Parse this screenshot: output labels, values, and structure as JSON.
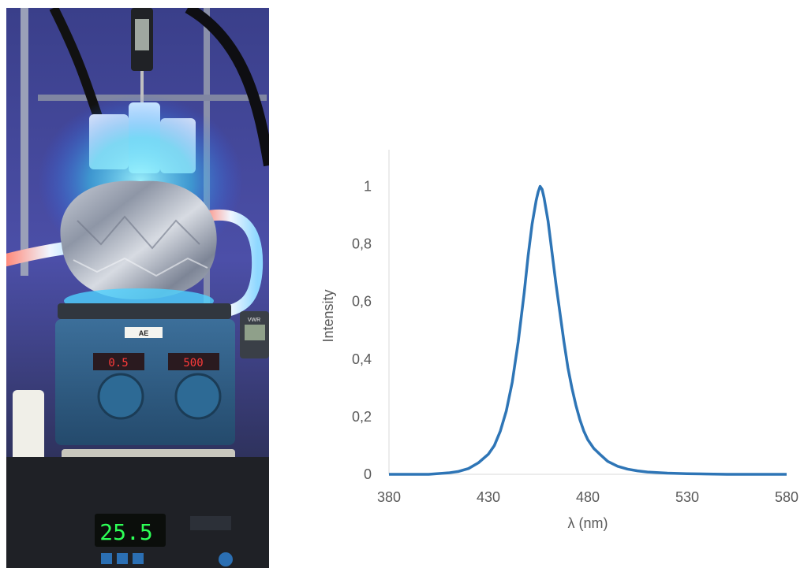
{
  "photo": {
    "hotplate_label": "AE",
    "meter_brand": "VWR",
    "temp_display": "25.5",
    "left_display": "0.5",
    "right_display": "500"
  },
  "chart_data": {
    "type": "line",
    "title": "",
    "xlabel": "λ (nm)",
    "ylabel": "Intensity",
    "xlim": [
      380,
      580
    ],
    "ylim": [
      0,
      1.1
    ],
    "x_ticks": [
      380,
      430,
      480,
      530,
      580
    ],
    "x_tick_labels": [
      "380",
      "430",
      "480",
      "530",
      "580"
    ],
    "y_ticks": [
      0,
      0.2,
      0.4,
      0.6,
      0.8,
      1
    ],
    "y_tick_labels": [
      "0",
      "0,2",
      "0,4",
      "0,6",
      "0,8",
      "1"
    ],
    "grid": false,
    "legend": "none",
    "series": [
      {
        "color": "#2e75b6",
        "x": [
          380,
          390,
          400,
          410,
          415,
          420,
          425,
          430,
          433,
          436,
          439,
          442,
          445,
          448,
          450,
          452,
          454,
          455,
          456,
          457,
          458,
          460,
          462,
          464,
          466,
          468,
          470,
          472,
          474,
          476,
          478,
          480,
          483,
          486,
          490,
          495,
          500,
          505,
          510,
          520,
          530,
          540,
          550,
          560,
          570,
          580
        ],
        "y": [
          0.0,
          0.0,
          0.0,
          0.005,
          0.01,
          0.02,
          0.04,
          0.07,
          0.1,
          0.15,
          0.22,
          0.32,
          0.46,
          0.63,
          0.76,
          0.87,
          0.95,
          0.98,
          1.0,
          0.99,
          0.96,
          0.88,
          0.77,
          0.66,
          0.56,
          0.46,
          0.37,
          0.3,
          0.24,
          0.19,
          0.15,
          0.12,
          0.09,
          0.07,
          0.045,
          0.028,
          0.018,
          0.012,
          0.008,
          0.004,
          0.002,
          0.001,
          0.0,
          0.0,
          0.0,
          0.0
        ]
      }
    ]
  }
}
